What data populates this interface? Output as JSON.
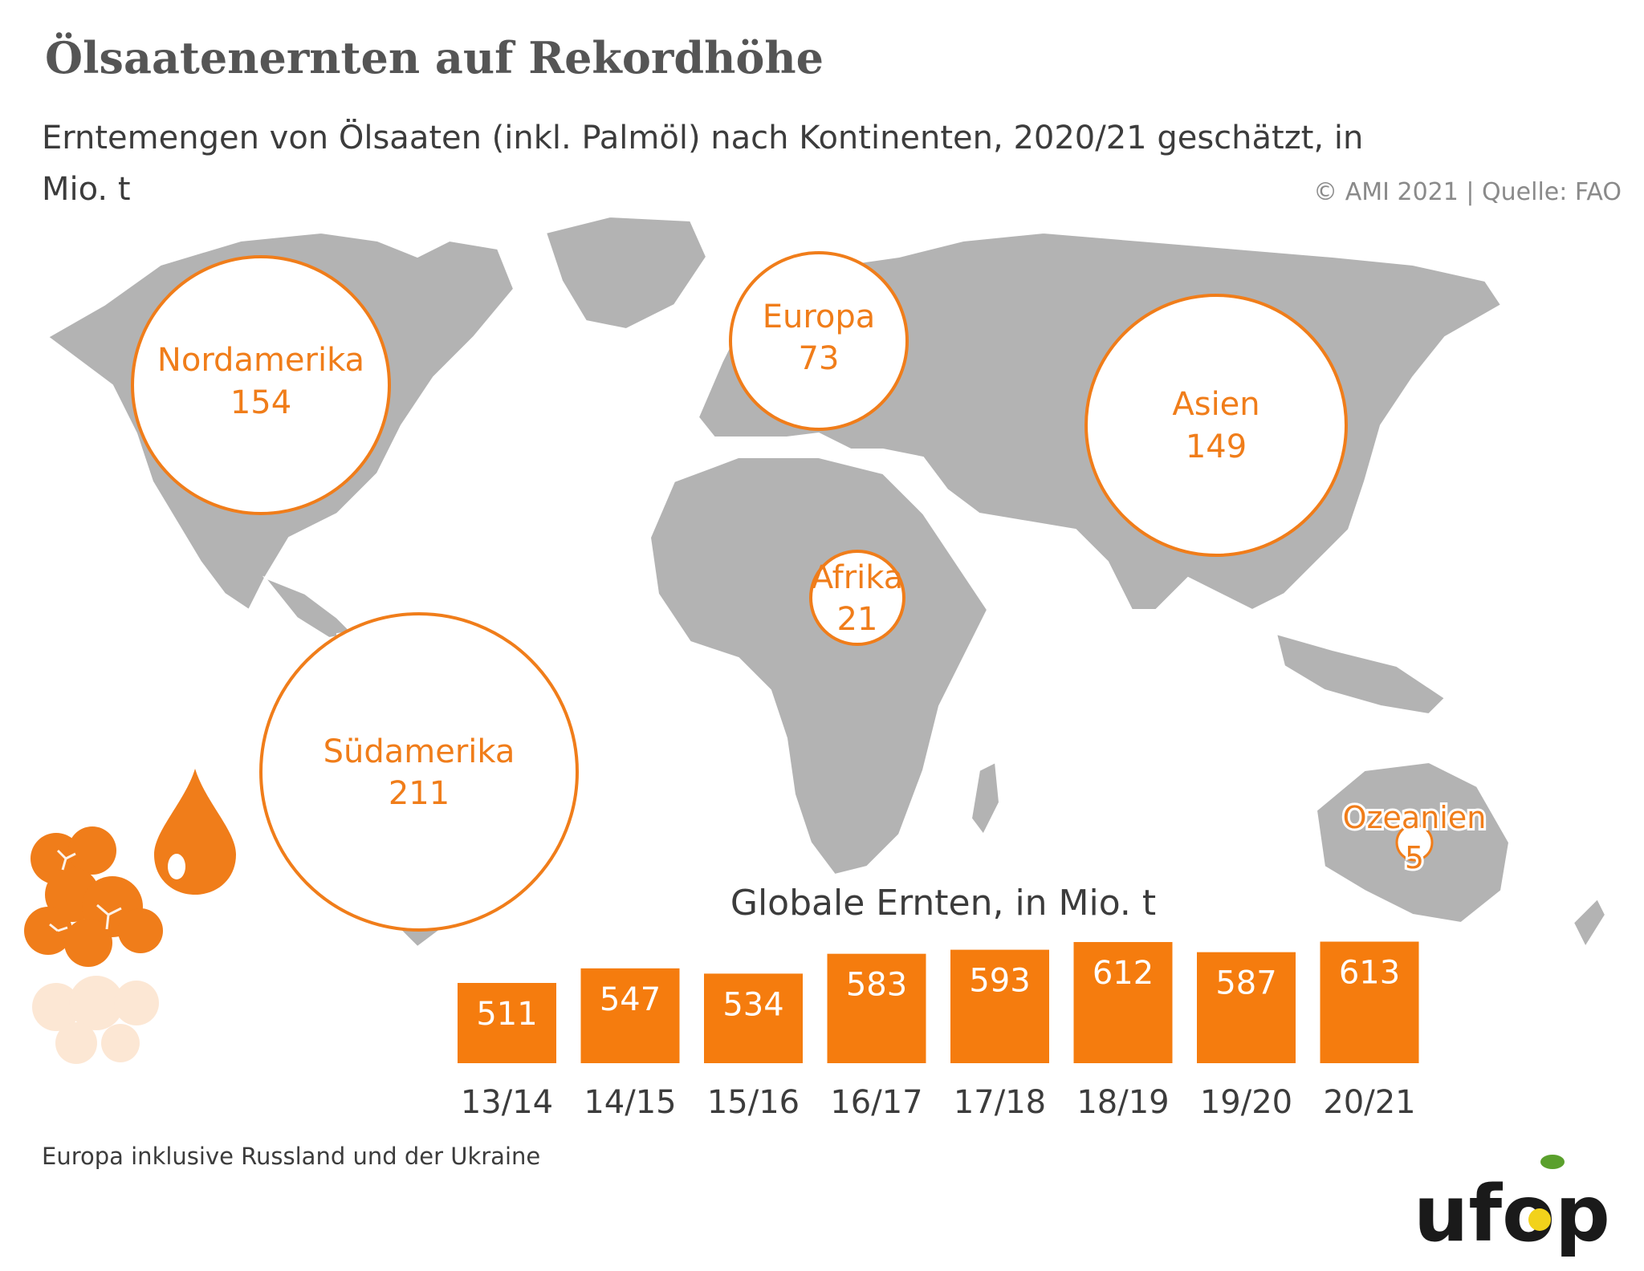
{
  "header": {
    "title": "Ölsaatenernten auf Rekordhöhe",
    "subtitle": "Erntemengen von Ölsaaten (inkl. Palmöl) nach Kontinenten, 2020/21 geschätzt, in Mio. t",
    "copyright": "© AMI 2021 | Quelle: FAO"
  },
  "footnote": "Europa inklusive Russland und der Ukraine",
  "logo": {
    "text": "ufop"
  },
  "colors": {
    "accent": "#F07D1A",
    "map": "#b3b3b3",
    "bar": "#F57C0E",
    "text": "#3c3c3c"
  },
  "chart_data": [
    {
      "type": "bubble-map",
      "unit": "Mio. t",
      "regions": [
        {
          "name": "Nordamerika",
          "value": 154
        },
        {
          "name": "Europa",
          "value": 73
        },
        {
          "name": "Asien",
          "value": 149
        },
        {
          "name": "Afrika",
          "value": 21
        },
        {
          "name": "Südamerika",
          "value": 211
        },
        {
          "name": "Ozeanien",
          "value": 5
        }
      ]
    },
    {
      "type": "bar",
      "title": "Globale Ernten, in Mio. t",
      "categories": [
        "13/14",
        "14/15",
        "15/16",
        "16/17",
        "17/18",
        "18/19",
        "19/20",
        "20/21"
      ],
      "values": [
        511,
        547,
        534,
        583,
        593,
        612,
        587,
        613
      ]
    }
  ]
}
